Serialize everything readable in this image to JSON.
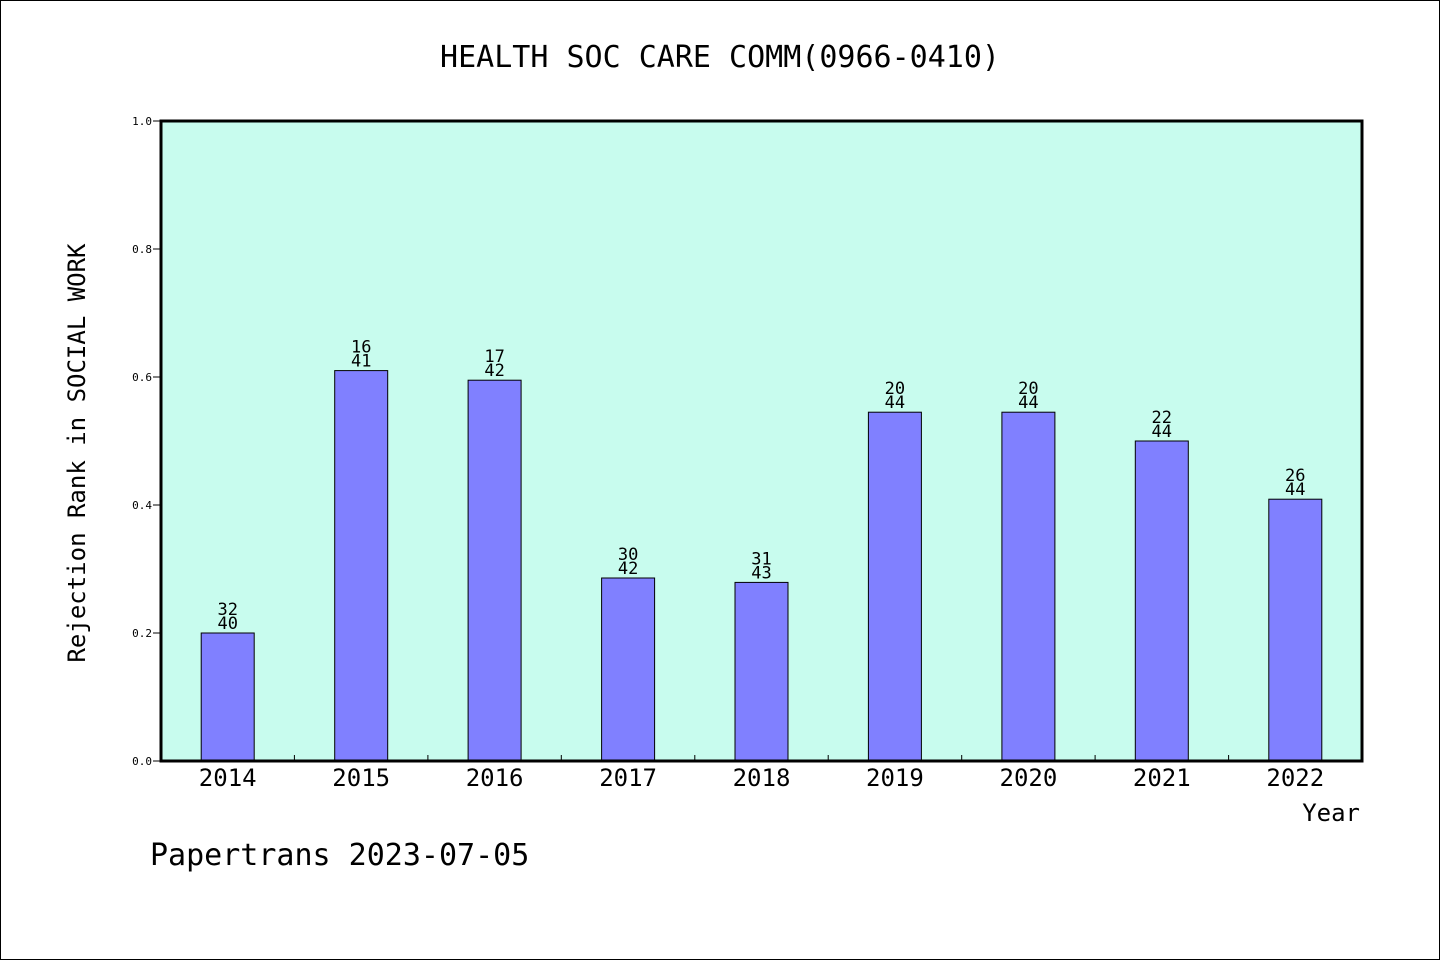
{
  "colors": {
    "plot_background": "#c8fcee",
    "bar_fill": "#8080ff",
    "axis": "#000000",
    "page_background": "#ffffff"
  },
  "footer": {
    "text": "Papertrans 2023-07-05"
  },
  "chart_data": {
    "type": "bar",
    "title": "HEALTH SOC CARE COMM(0966-0410)",
    "xlabel": "Year",
    "ylabel": "Rejection Rank in SOCIAL WORK",
    "ylim": [
      0,
      1.0
    ],
    "yticks": [
      "0.0",
      "0.2",
      "0.4",
      "0.6",
      "0.8",
      "1.0"
    ],
    "grid": false,
    "categories": [
      "2014",
      "2015",
      "2016",
      "2017",
      "2018",
      "2019",
      "2020",
      "2021",
      "2022"
    ],
    "values": [
      0.2,
      0.61,
      0.595,
      0.286,
      0.279,
      0.545,
      0.545,
      0.5,
      0.409
    ],
    "annotations": [
      {
        "top": "32",
        "bottom": "40"
      },
      {
        "top": "16",
        "bottom": "41"
      },
      {
        "top": "17",
        "bottom": "42"
      },
      {
        "top": "30",
        "bottom": "42"
      },
      {
        "top": "31",
        "bottom": "43"
      },
      {
        "top": "20",
        "bottom": "44"
      },
      {
        "top": "20",
        "bottom": "44"
      },
      {
        "top": "22",
        "bottom": "44"
      },
      {
        "top": "26",
        "bottom": "44"
      }
    ]
  }
}
